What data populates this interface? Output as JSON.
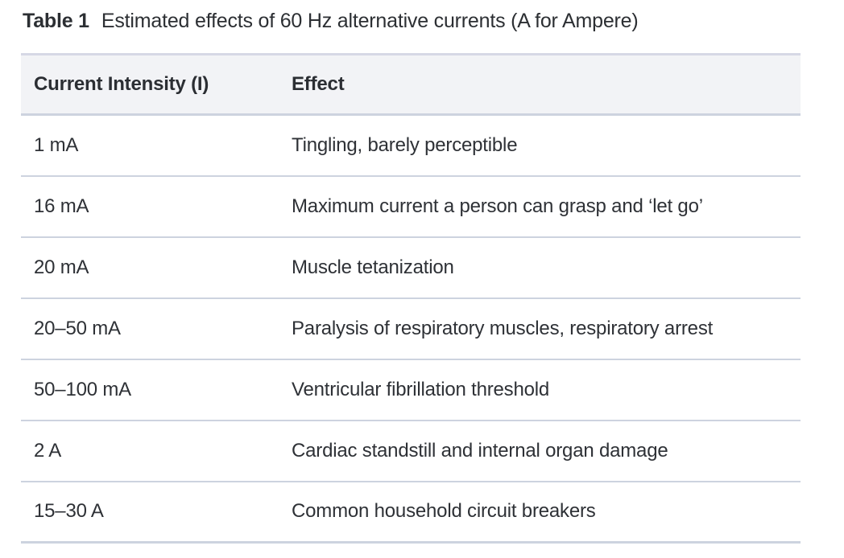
{
  "caption": {
    "label": "Table 1",
    "text": "Estimated effects of 60 Hz alternative currents (A for Ampere)"
  },
  "table": {
    "columns": [
      "Current Intensity (I)",
      "Effect"
    ],
    "rows": [
      {
        "intensity": "1 mA",
        "effect": "Tingling, barely perceptible"
      },
      {
        "intensity": "16 mA",
        "effect": "Maximum current a person can grasp and ‘let go’"
      },
      {
        "intensity": "20 mA",
        "effect": "Muscle tetanization"
      },
      {
        "intensity": "20–50 mA",
        "effect": "Paralysis of respiratory muscles, respiratory arrest"
      },
      {
        "intensity": "50–100 mA",
        "effect": "Ventricular fibrillation threshold"
      },
      {
        "intensity": "2 A",
        "effect": "Cardiac standstill and internal organ damage"
      },
      {
        "intensity": "15–30 A",
        "effect": "Common household circuit breakers"
      }
    ]
  },
  "colors": {
    "header_background": "#f2f3f6",
    "rule": "#cdd3df",
    "header_top_rule": "#d6d8e5",
    "text": "#2e3136",
    "page_background": "#ffffff"
  }
}
